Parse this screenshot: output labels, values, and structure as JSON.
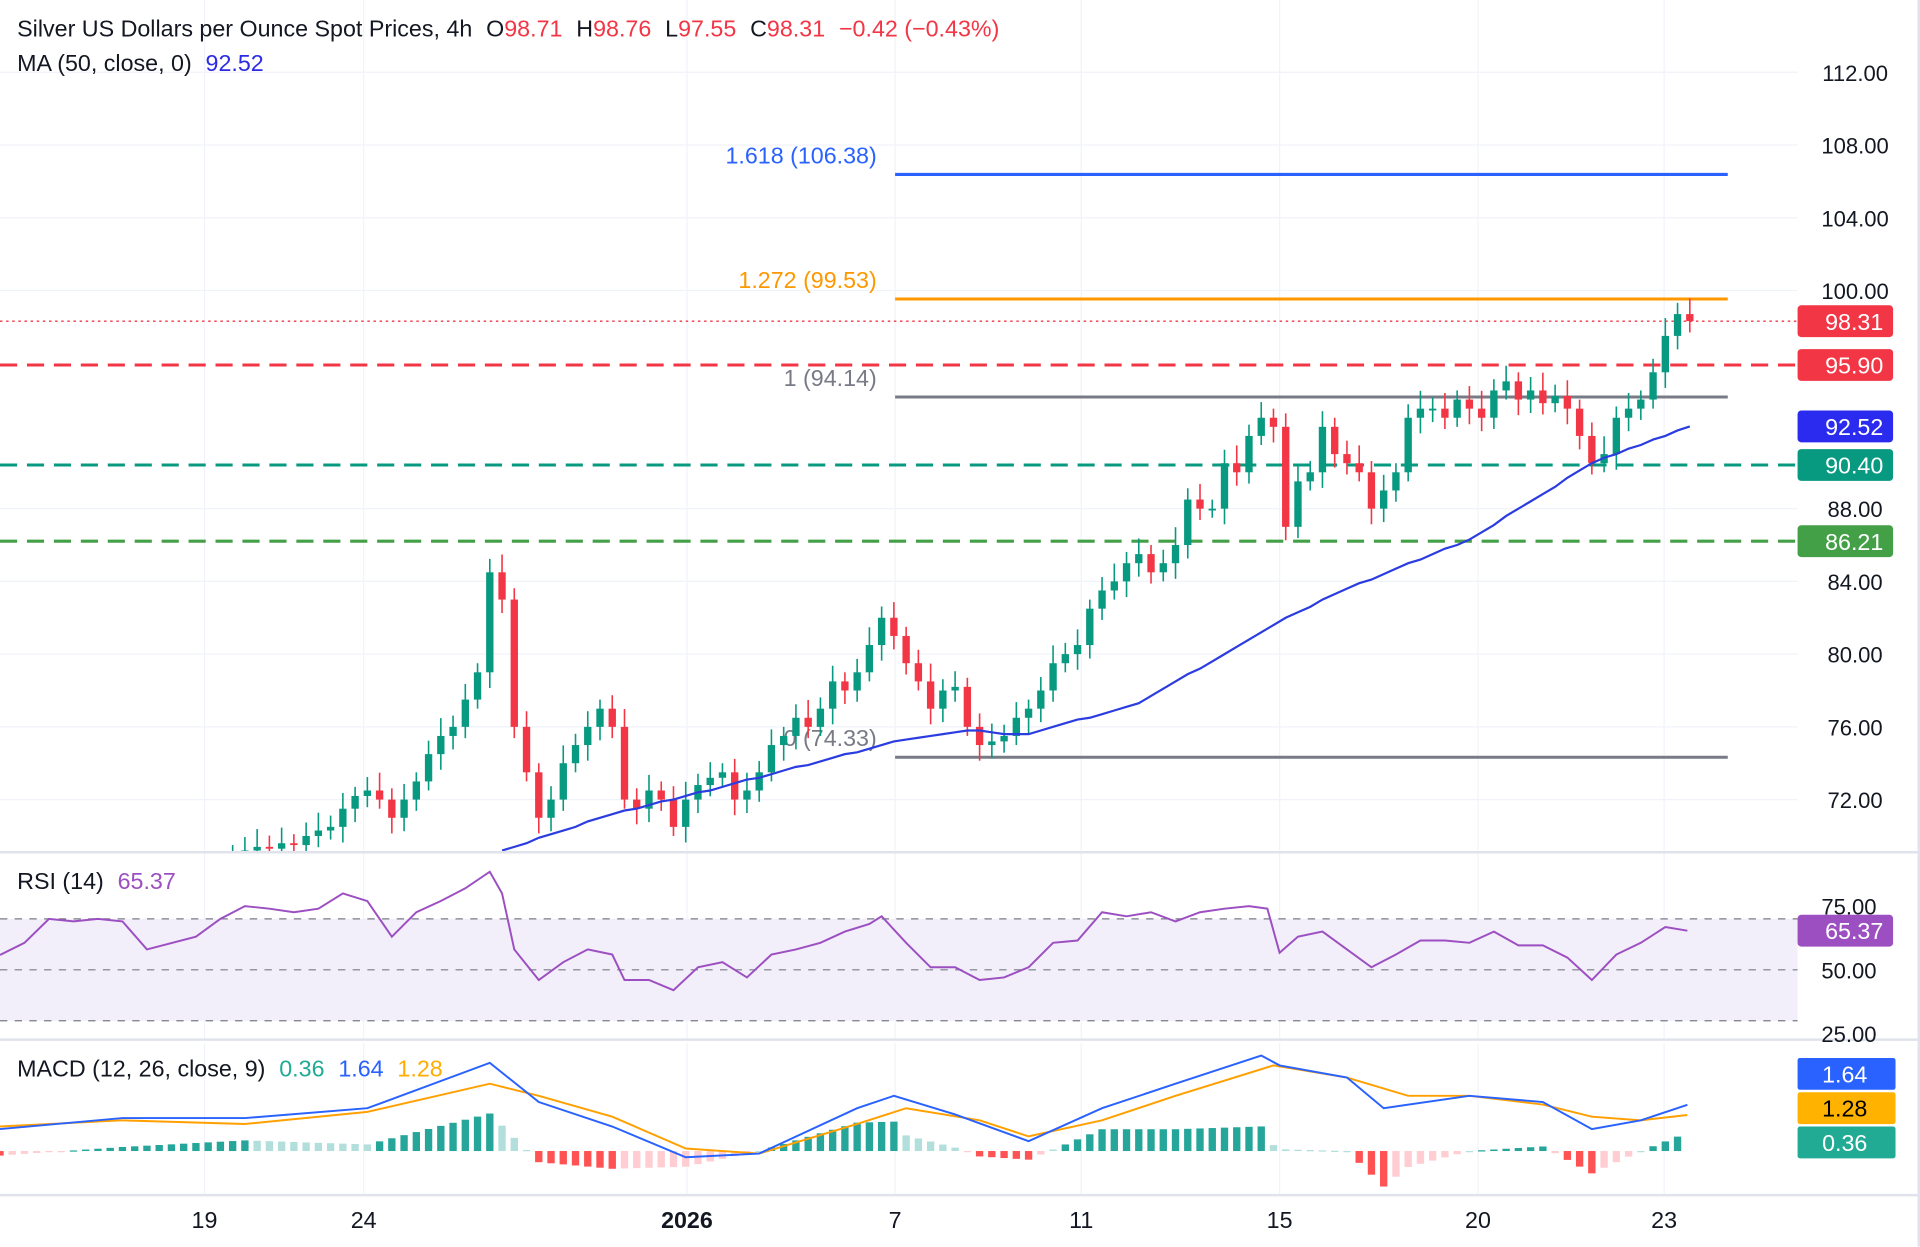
{
  "header": {
    "title": "Silver US Dollars per Ounce Spot Prices, 4h",
    "o_label": "O",
    "o": "98.71",
    "h_label": "H",
    "h": "98.76",
    "l_label": "L",
    "l": "97.55",
    "c_label": "C",
    "c": "98.31",
    "change": "−0.42 (−0.43%)",
    "ma_label": "MA (50, close, 0)",
    "ma_value": "92.52"
  },
  "rsi_legend": {
    "label": "RSI (14)",
    "value": "65.37"
  },
  "macd_legend": {
    "label": "MACD (12, 26, close, 9)",
    "hist": "0.36",
    "macd": "1.64",
    "signal": "1.28"
  },
  "colors": {
    "up": "#089981",
    "down": "#f23645",
    "ma": "#2b3ce0",
    "rsi": "#9c4fc1",
    "macd": "#2962ff",
    "signal": "#ffa000",
    "fib_1618": "#2962ff",
    "fib_1272": "#ff9800",
    "fib_gray": "#787b86",
    "level_red": "#f23645",
    "level_teal": "#089981",
    "level_green": "#43a047"
  },
  "chart_data": [
    {
      "type": "candlestick",
      "title": "Silver US Dollars per Ounce Spot Prices, 4h",
      "ylim": [
        69,
        114
      ],
      "yticks": [
        "112.00",
        "108.00",
        "104.00",
        "100.00",
        "88.00",
        "84.00",
        "80.00",
        "76.00",
        "72.00"
      ],
      "xticks": [
        {
          "label": "19",
          "bar": 16.7
        },
        {
          "label": "24",
          "bar": 29.7
        },
        {
          "label": "2026",
          "bar": 56.1,
          "bold": true
        },
        {
          "label": "7",
          "bar": 73.1
        },
        {
          "label": "11",
          "bar": 88.3
        },
        {
          "label": "15",
          "bar": 104.5
        },
        {
          "label": "20",
          "bar": 120.7
        },
        {
          "label": "23",
          "bar": 135.9
        }
      ],
      "first_bar": 19,
      "closes": [
        69.0,
        69.2,
        69.4,
        69.3,
        69.6,
        69.5,
        70.0,
        70.3,
        70.5,
        71.5,
        72.2,
        72.5,
        72.0,
        71.0,
        72.0,
        73.0,
        74.5,
        75.5,
        76.0,
        77.5,
        79.0,
        84.5,
        83.0,
        76.0,
        73.5,
        71.0,
        72.0,
        74.0,
        75.0,
        76.0,
        77.0,
        76.0,
        72.0,
        71.5,
        72.5,
        72.0,
        70.5,
        72.0,
        72.8,
        73.2,
        73.5,
        72.0,
        72.5,
        73.5,
        75.0,
        75.5,
        76.5,
        76.0,
        77.0,
        78.5,
        78.0,
        79.0,
        80.5,
        82.0,
        81.0,
        79.5,
        78.5,
        77.0,
        78.0,
        78.2,
        76.0,
        75.0,
        75.2,
        75.5,
        76.5,
        77.0,
        78.0,
        79.5,
        80.0,
        80.5,
        82.5,
        83.5,
        84.0,
        85.0,
        85.5,
        84.5,
        85.0,
        86.0,
        88.5,
        88.0,
        88.0,
        90.5,
        90.0,
        92.0,
        93.0,
        92.5,
        87.0,
        89.5,
        90.0,
        92.5,
        91.0,
        90.5,
        90.0,
        88.0,
        89.0,
        90.0,
        93.0,
        93.5,
        93.5,
        93.0,
        94.0,
        93.5,
        93.0,
        94.5,
        95.0,
        94.0,
        94.5,
        93.8,
        94.2,
        93.5,
        92.0,
        90.5,
        91.0,
        93.0,
        93.5,
        94.0,
        95.5,
        97.5,
        98.7,
        98.31
      ],
      "ma50": {
        "name": "MA (50, close, 0)",
        "first_bar": 41,
        "values": [
          69.2,
          69.4,
          69.6,
          69.9,
          70.1,
          70.3,
          70.5,
          70.8,
          71.0,
          71.2,
          71.4,
          71.5,
          71.7,
          71.9,
          72.0,
          72.2,
          72.4,
          72.5,
          72.7,
          72.9,
          73.1,
          73.2,
          73.4,
          73.6,
          73.8,
          73.9,
          74.1,
          74.3,
          74.5,
          74.6,
          74.8,
          75.0,
          75.2,
          75.3,
          75.4,
          75.5,
          75.6,
          75.7,
          75.8,
          75.8,
          75.7,
          75.6,
          75.6,
          75.6,
          75.8,
          76.0,
          76.2,
          76.4,
          76.5,
          76.7,
          76.9,
          77.1,
          77.3,
          77.7,
          78.1,
          78.5,
          78.9,
          79.2,
          79.6,
          80.0,
          80.4,
          80.8,
          81.2,
          81.6,
          82.0,
          82.3,
          82.6,
          83.0,
          83.3,
          83.6,
          83.9,
          84.1,
          84.4,
          84.7,
          85.0,
          85.2,
          85.5,
          85.8,
          86.0,
          86.3,
          86.7,
          87.1,
          87.6,
          88.0,
          88.4,
          88.8,
          89.2,
          89.7,
          90.1,
          90.5,
          90.8,
          91.0,
          91.3,
          91.5,
          91.8,
          92.0,
          92.3,
          92.52
        ]
      },
      "fib_levels": [
        {
          "ratio": "1.618",
          "price": 106.38,
          "label": "1.618 (106.38)",
          "color": "#2962ff"
        },
        {
          "ratio": "1.272",
          "price": 99.53,
          "label": "1.272 (99.53)",
          "color": "#ff9800"
        },
        {
          "ratio": "1",
          "price": 94.14,
          "label": "1 (94.14)",
          "color": "#787b86"
        },
        {
          "ratio": "0",
          "price": 74.33,
          "label": "0 (74.33)",
          "color": "#787b86"
        }
      ],
      "horizontal_levels": [
        {
          "price": 95.9,
          "label": "95.90",
          "color": "#f23645",
          "style": "dashed"
        },
        {
          "price": 90.4,
          "label": "90.40",
          "color": "#089981",
          "style": "dashed"
        },
        {
          "price": 86.21,
          "label": "86.21",
          "color": "#43a047",
          "style": "dashed"
        }
      ],
      "last_price": {
        "price": 98.31,
        "label": "98.31",
        "color": "#f23645"
      },
      "ma_badge": {
        "price": 92.52,
        "label": "92.52",
        "color": "#2b2bf0"
      }
    },
    {
      "type": "line",
      "title": "RSI (14)",
      "ylim": [
        20,
        92
      ],
      "yticks": [
        "75.00",
        "50.00",
        "25.00"
      ],
      "band": [
        30,
        70
      ],
      "points": [
        [
          0,
          55.8
        ],
        [
          2,
          60.6
        ],
        [
          4,
          70
        ],
        [
          6,
          69
        ],
        [
          8,
          70
        ],
        [
          10,
          69
        ],
        [
          12,
          58
        ],
        [
          14,
          60.5
        ],
        [
          16,
          63
        ],
        [
          18,
          70
        ],
        [
          20,
          75
        ],
        [
          22,
          74
        ],
        [
          24,
          72.6
        ],
        [
          26,
          74
        ],
        [
          28,
          80
        ],
        [
          30,
          77
        ],
        [
          32,
          63
        ],
        [
          34,
          72.6
        ],
        [
          36,
          77
        ],
        [
          38,
          82
        ],
        [
          40,
          88.5
        ],
        [
          41,
          80
        ],
        [
          42,
          58
        ],
        [
          44,
          46
        ],
        [
          46,
          53
        ],
        [
          48,
          58
        ],
        [
          50,
          56
        ],
        [
          51,
          46
        ],
        [
          53,
          46
        ],
        [
          55,
          42
        ],
        [
          57,
          51
        ],
        [
          59,
          53
        ],
        [
          61,
          47
        ],
        [
          63,
          56
        ],
        [
          65,
          58
        ],
        [
          67,
          60.6
        ],
        [
          69,
          65
        ],
        [
          71,
          68
        ],
        [
          72,
          71
        ],
        [
          74,
          60.6
        ],
        [
          76,
          51
        ],
        [
          78,
          51
        ],
        [
          80,
          46
        ],
        [
          82,
          47
        ],
        [
          84,
          51
        ],
        [
          86,
          60.6
        ],
        [
          88,
          61.5
        ],
        [
          90,
          72.6
        ],
        [
          92,
          71
        ],
        [
          94,
          72.6
        ],
        [
          96,
          69
        ],
        [
          98,
          72.6
        ],
        [
          100,
          74
        ],
        [
          102,
          75
        ],
        [
          103.5,
          74
        ],
        [
          104.5,
          56.7
        ],
        [
          106,
          63
        ],
        [
          108,
          65
        ],
        [
          110,
          58
        ],
        [
          112,
          51
        ],
        [
          114,
          56
        ],
        [
          116,
          61.5
        ],
        [
          118,
          61.5
        ],
        [
          120,
          60.6
        ],
        [
          122,
          65
        ],
        [
          124,
          59.6
        ],
        [
          126,
          59.6
        ],
        [
          128,
          54.8
        ],
        [
          130,
          46
        ],
        [
          132,
          56
        ],
        [
          134,
          60.6
        ],
        [
          136,
          66.8
        ],
        [
          137.8,
          65.37
        ]
      ],
      "last": "65.37"
    },
    {
      "type": "line",
      "title": "MACD (12, 26, close, 9)",
      "macd": [
        [
          0,
          0.78
        ],
        [
          10,
          1.17
        ],
        [
          20,
          1.17
        ],
        [
          30,
          1.52
        ],
        [
          40,
          3.13
        ],
        [
          44,
          1.74
        ],
        [
          50,
          0.87
        ],
        [
          56,
          -0.22
        ],
        [
          62,
          -0.09
        ],
        [
          70,
          1.52
        ],
        [
          73,
          1.96
        ],
        [
          78,
          1.3
        ],
        [
          84,
          0.35
        ],
        [
          90,
          1.52
        ],
        [
          96,
          2.39
        ],
        [
          103,
          3.39
        ],
        [
          104.5,
          3.04
        ],
        [
          110,
          2.61
        ],
        [
          113,
          1.52
        ],
        [
          120,
          1.96
        ],
        [
          126,
          1.74
        ],
        [
          130,
          0.78
        ],
        [
          134,
          1.09
        ],
        [
          137.8,
          1.64
        ]
      ],
      "signal": [
        [
          0,
          0.87
        ],
        [
          10,
          1.09
        ],
        [
          20,
          0.96
        ],
        [
          30,
          1.39
        ],
        [
          40,
          2.39
        ],
        [
          44,
          1.96
        ],
        [
          50,
          1.22
        ],
        [
          56,
          0.09
        ],
        [
          62,
          -0.09
        ],
        [
          70,
          0.96
        ],
        [
          74,
          1.52
        ],
        [
          80,
          1.09
        ],
        [
          84,
          0.52
        ],
        [
          90,
          1.09
        ],
        [
          96,
          1.96
        ],
        [
          104,
          3.04
        ],
        [
          110,
          2.61
        ],
        [
          115,
          1.96
        ],
        [
          120,
          1.96
        ],
        [
          126,
          1.65
        ],
        [
          130,
          1.22
        ],
        [
          134,
          1.09
        ],
        [
          137.8,
          1.28
        ]
      ],
      "last_macd": "1.64",
      "last_signal": "1.28",
      "last_hist": "0.36"
    }
  ]
}
